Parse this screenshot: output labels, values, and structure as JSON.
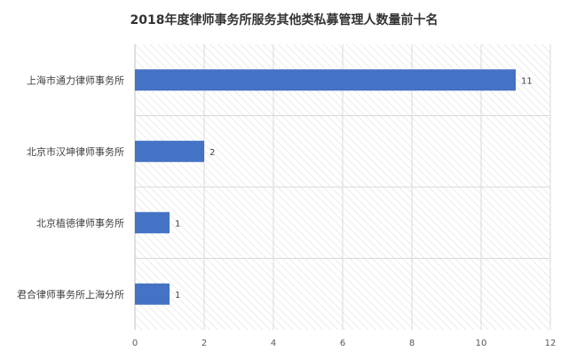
{
  "chart_data": {
    "type": "bar",
    "orientation": "horizontal",
    "title": "2018年度律师事务所服务其他类私募管理人数量前十名",
    "categories": [
      "上海市通力律师事务所",
      "北京市汉坤律师事务所",
      "北京植德律师事务所",
      "君合律师事务所上海分所"
    ],
    "values": [
      11,
      2,
      1,
      1
    ],
    "data_labels": [
      "11",
      "2",
      "1",
      "1"
    ],
    "xlim": [
      0,
      12
    ],
    "x_ticks": [
      "0",
      "2",
      "4",
      "6",
      "8",
      "10",
      "12"
    ],
    "xlabel": "",
    "ylabel": "",
    "grid": true,
    "legend": "none",
    "bar_color": "#4472C4",
    "plot_background": "hatched-light-gray"
  }
}
